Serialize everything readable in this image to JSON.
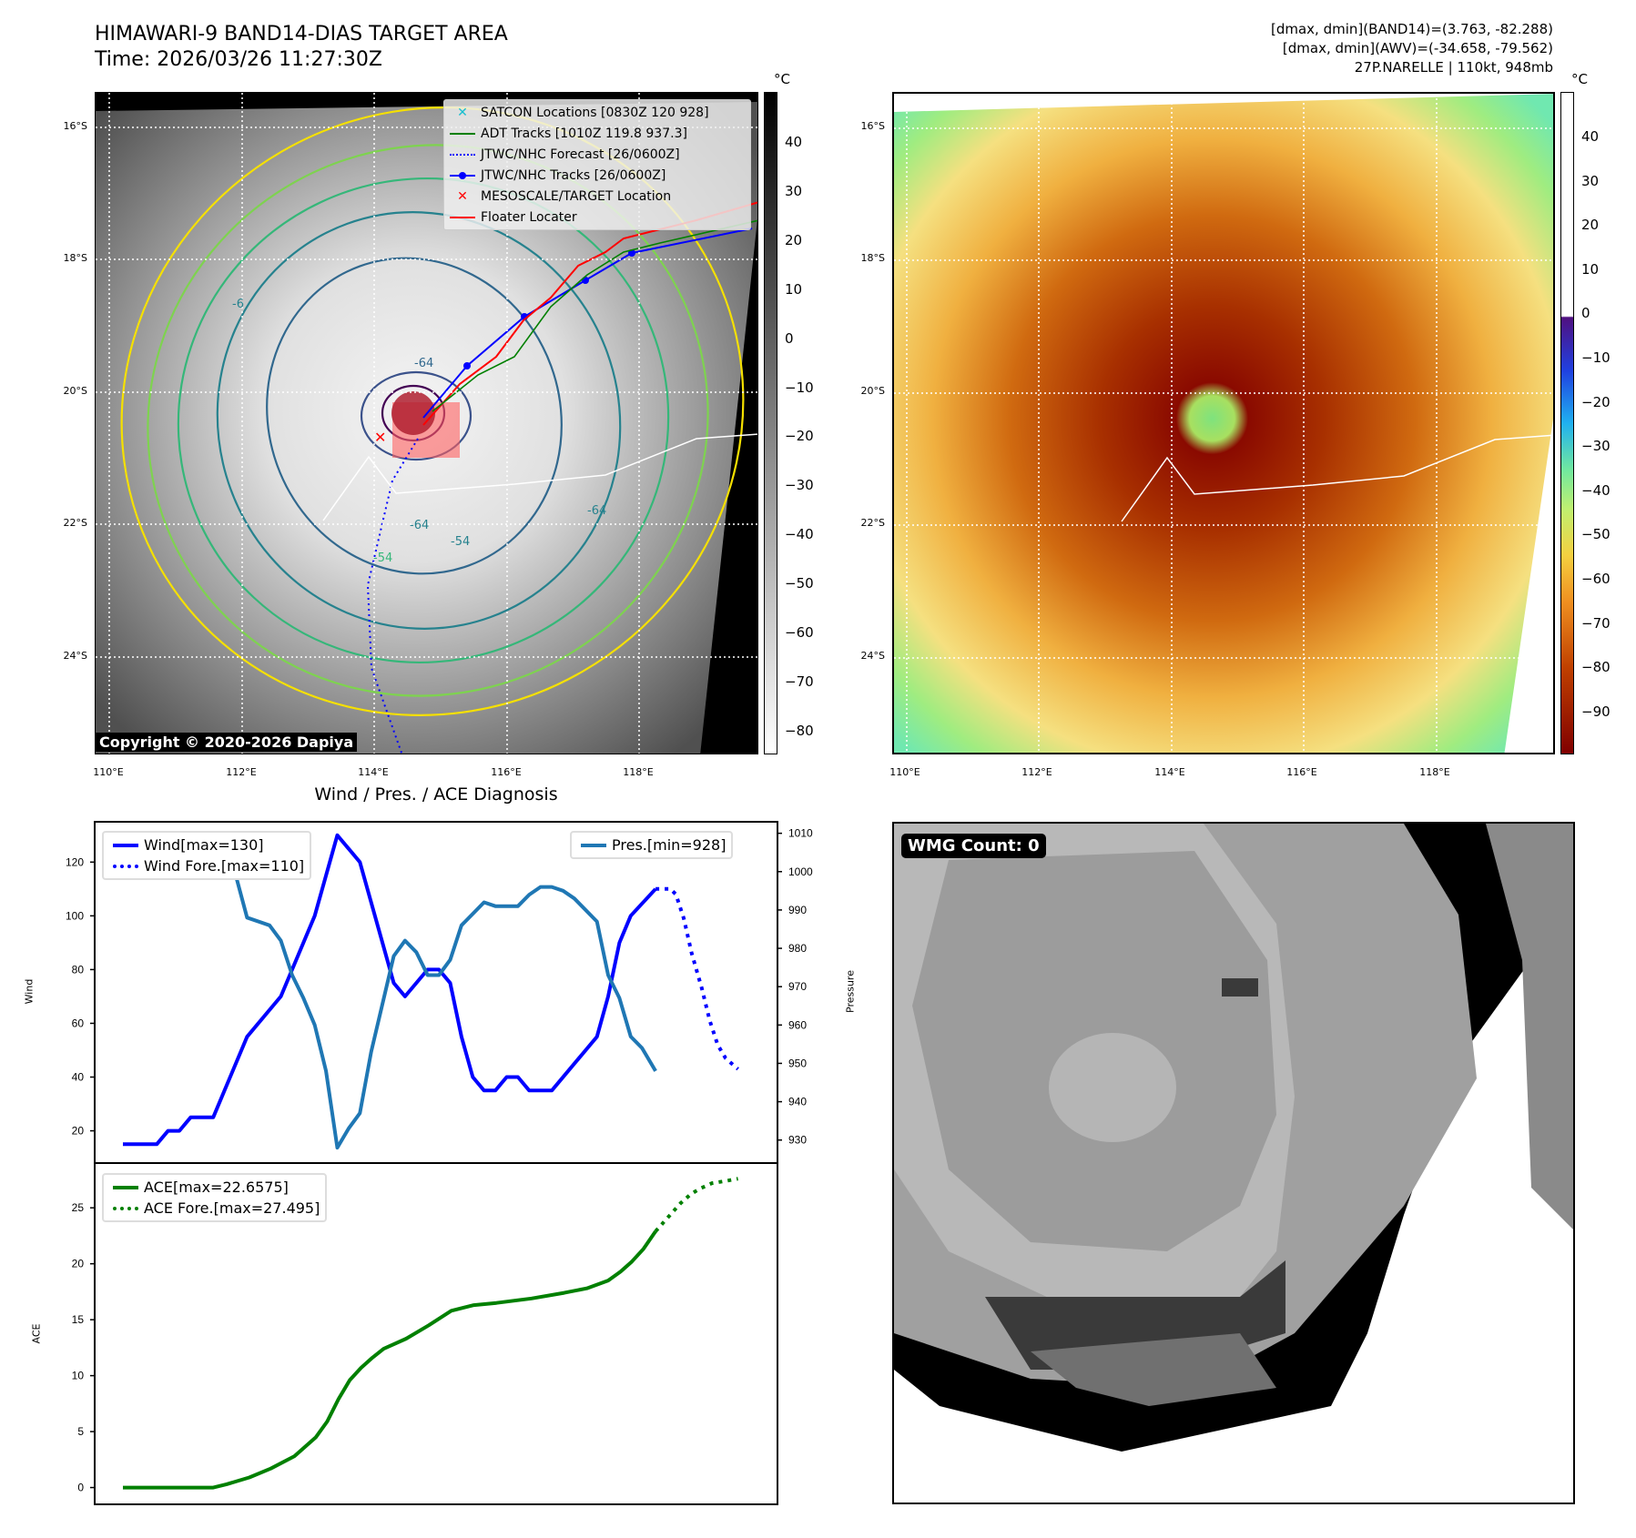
{
  "header": {
    "title_line1": "HIMAWARI-9 BAND14-DIAS TARGET AREA",
    "title_line2": "Time: 2026/03/26 11:27:30Z",
    "stats_line1": "[dmax, dmin](BAND14)=(3.763, -82.288)",
    "stats_line2": "[dmax, dmin](AWV)=(-34.658, -79.562)",
    "stats_line3": "27P.NARELLE | 110kt, 948mb"
  },
  "maps": {
    "unit": "°C",
    "lat_labels": [
      "16°S",
      "18°S",
      "20°S",
      "22°S",
      "24°S"
    ],
    "lon_labels": [
      "110°E",
      "112°E",
      "114°E",
      "116°E",
      "118°E"
    ],
    "left_colorbar_ticks": [
      "40",
      "30",
      "20",
      "10",
      "0",
      "−10",
      "−20",
      "−30",
      "−40",
      "−50",
      "−60",
      "−70",
      "−80"
    ],
    "right_colorbar_ticks": [
      "40",
      "30",
      "20",
      "10",
      "0",
      "−10",
      "−20",
      "−30",
      "−40",
      "−50",
      "−60",
      "−70",
      "−80",
      "−90"
    ],
    "contour_labels": [
      "-64",
      "-64",
      "-54",
      "-54",
      "-64",
      "-6"
    ],
    "copyright": "Copyright © 2020-2026 Dapiya",
    "legend": [
      {
        "label": "SATCON Locations [0830Z 120 928]",
        "icon": "x-marker-icon",
        "color": "#17becf"
      },
      {
        "label": "ADT Tracks [1010Z 119.8 937.3]",
        "icon": "solid-line-icon",
        "color": "#008000"
      },
      {
        "label": "JTWC/NHC Forecast [26/0600Z]",
        "icon": "dotted-line-icon",
        "color": "#0000ff"
      },
      {
        "label": "JTWC/NHC Tracks [26/0600Z]",
        "icon": "line-dot-icon",
        "color": "#0000ff"
      },
      {
        "label": "MESOSCALE/TARGET Location",
        "icon": "x-marker-icon",
        "color": "#ff0000"
      },
      {
        "label": "Floater Locater",
        "icon": "solid-line-icon",
        "color": "#ff0000"
      }
    ]
  },
  "wmg": {
    "label": "WMG Count: 0"
  },
  "chart_data": [
    {
      "type": "line",
      "title": "Wind / Pres. / ACE Diagnosis",
      "ylabel": "Wind",
      "y2label": "Pressure",
      "xlim": [
        -2.5,
        58
      ],
      "ylim": [
        8,
        135
      ],
      "y2lim": [
        924,
        1013
      ],
      "yticks": [
        20,
        40,
        60,
        80,
        100,
        120
      ],
      "y2ticks": [
        930,
        940,
        950,
        960,
        970,
        980,
        990,
        1000,
        1010
      ],
      "series": [
        {
          "name": "Wind[max=130]",
          "color": "#0000ff",
          "style": "solid",
          "axis": "left",
          "x": [
            0,
            3,
            4,
            5,
            6,
            8,
            11,
            14,
            17,
            19,
            21,
            24,
            25,
            27,
            28,
            29,
            30,
            31,
            32,
            33,
            34,
            35,
            36,
            38,
            42,
            43,
            44,
            45,
            47.2
          ],
          "y": [
            15,
            15,
            20,
            20,
            25,
            25,
            55,
            70,
            100,
            130,
            120,
            75,
            70,
            80,
            80,
            75,
            55,
            40,
            35,
            35,
            40,
            40,
            35,
            35,
            55,
            70,
            90,
            100,
            110
          ]
        },
        {
          "name": "Wind Fore.[max=110]",
          "color": "#0000ff",
          "style": "dotted",
          "axis": "left",
          "x": [
            47.2,
            48.5,
            49,
            49.7,
            50.4,
            51.3,
            52,
            52.7,
            53.4,
            54.5
          ],
          "y": [
            110,
            110,
            108,
            99,
            86,
            73,
            61,
            52,
            47,
            43
          ]
        },
        {
          "name": "Pres.[min=928]",
          "color": "#1f77b4",
          "style": "solid",
          "axis": "right",
          "x": [
            0,
            2,
            3,
            4,
            5,
            6,
            9,
            10,
            11,
            13,
            14,
            15,
            16,
            17,
            18,
            19,
            20,
            21,
            22,
            24,
            25,
            26,
            27,
            28,
            29,
            30,
            32,
            33,
            35,
            36,
            37,
            38,
            39,
            40,
            42,
            43,
            44,
            45,
            46,
            47.2
          ],
          "y": [
            1009,
            1009,
            1005,
            1006,
            1005,
            1003,
            1003,
            999,
            988,
            986,
            982,
            973,
            967,
            960,
            948,
            928,
            933,
            937,
            953,
            978,
            982,
            979,
            973,
            973,
            977,
            986,
            992,
            991,
            991,
            994,
            996,
            996,
            995,
            993,
            987,
            973,
            967,
            957,
            954,
            948
          ]
        }
      ]
    },
    {
      "type": "line",
      "ylabel": "ACE",
      "xlim": [
        -2.5,
        58
      ],
      "ylim": [
        -1.5,
        29
      ],
      "yticks": [
        0,
        5,
        10,
        15,
        20,
        25
      ],
      "series": [
        {
          "name": "ACE[max=22.6575]",
          "color": "#008000",
          "style": "solid",
          "x": [
            0,
            8,
            9.2,
            11.2,
            13.1,
            15.2,
            17.1,
            18.1,
            19.1,
            20.1,
            21.1,
            22.1,
            23.1,
            25.1,
            27.1,
            29.1,
            31.1,
            33.1,
            36.2,
            39.1,
            41.1,
            43,
            44.1,
            45.1,
            46.1,
            47.2
          ],
          "y": [
            0,
            0,
            0.3,
            0.9,
            1.7,
            2.8,
            4.5,
            5.9,
            7.9,
            9.6,
            10.7,
            11.6,
            12.4,
            13.3,
            14.5,
            15.8,
            16.3,
            16.5,
            16.9,
            17.4,
            17.8,
            18.5,
            19.3,
            20.2,
            21.3,
            22.9
          ]
        },
        {
          "name": "ACE Fore.[max=27.495]",
          "color": "#008000",
          "style": "dotted",
          "x": [
            47.2,
            47.9,
            48.7,
            49.4,
            50.3,
            51.1,
            52.2,
            53.4,
            54.5
          ],
          "y": [
            22.9,
            23.7,
            24.6,
            25.4,
            26.2,
            26.7,
            27.2,
            27.4,
            27.6
          ]
        }
      ]
    }
  ]
}
